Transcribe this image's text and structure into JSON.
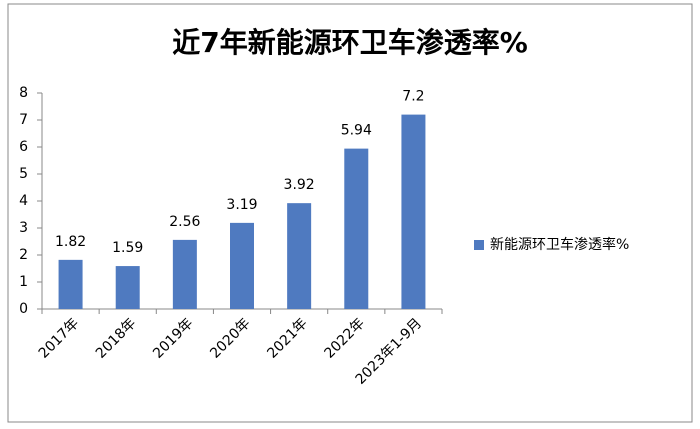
{
  "chart_data": {
    "type": "bar",
    "title": "近7年新能源环卫车渗透率%",
    "categories": [
      "2017年",
      "2018年",
      "2019年",
      "2020年",
      "2021年",
      "2022年",
      "2023年1-9月"
    ],
    "series": [
      {
        "name": "新能源环卫车渗透率%",
        "color": "#4f7ac0",
        "values": [
          1.82,
          1.59,
          2.56,
          3.19,
          3.92,
          5.94,
          7.2
        ]
      }
    ],
    "ylim": [
      0,
      8
    ],
    "yticks": [
      0,
      1,
      2,
      3,
      4,
      5,
      6,
      7,
      8
    ],
    "grid": false,
    "legend": "right"
  }
}
